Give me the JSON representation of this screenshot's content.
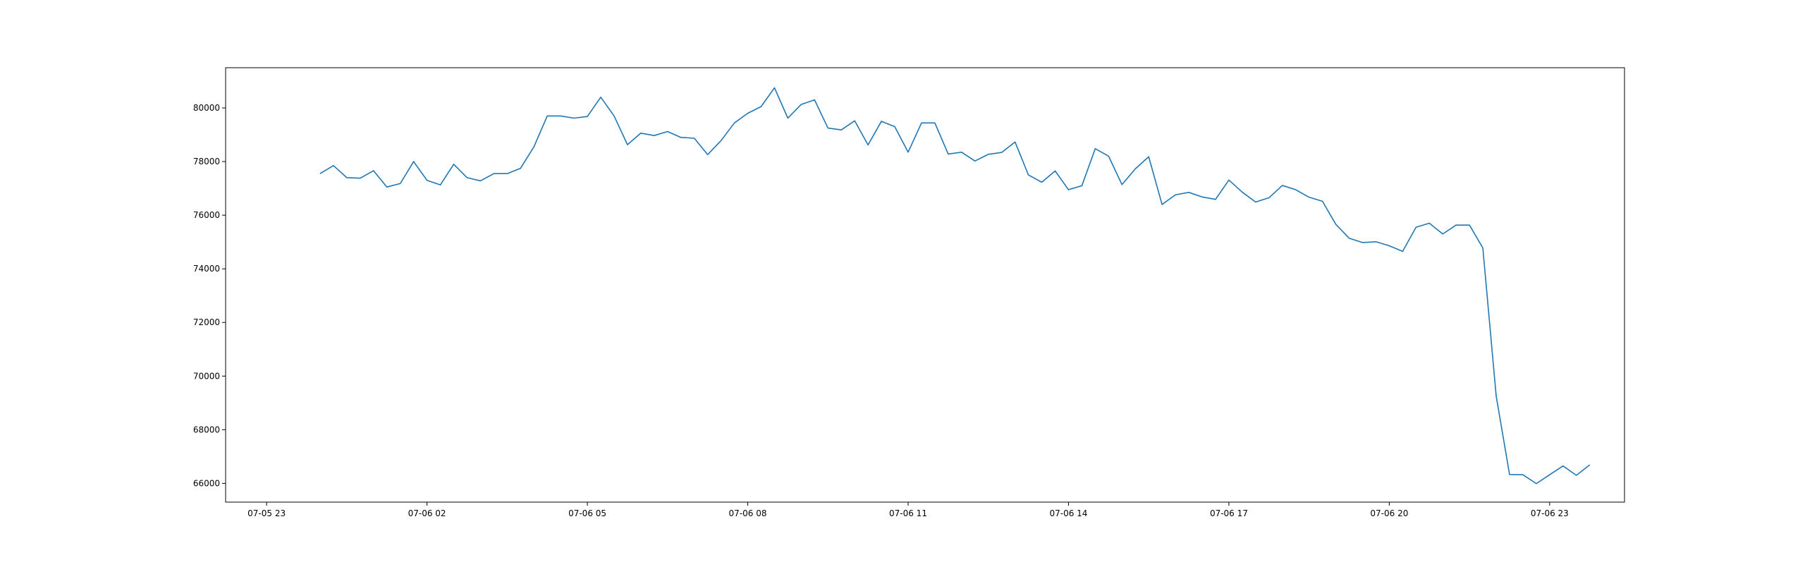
{
  "chart_data": {
    "type": "line",
    "title": "",
    "xlabel": "",
    "ylabel": "",
    "grid": false,
    "legend": "none",
    "x_tick_labels": [
      "07-05 23",
      "07-06 02",
      "07-06 05",
      "07-06 08",
      "07-06 11",
      "07-06 14",
      "07-06 17",
      "07-06 20",
      "07-06 23"
    ],
    "y_ticks": [
      66000,
      68000,
      70000,
      72000,
      74000,
      76000,
      78000,
      80000
    ],
    "y_tick_labels": [
      "66000",
      "68000",
      "70000",
      "72000",
      "74000",
      "76000",
      "78000",
      "80000"
    ],
    "ylim": [
      65300,
      81500
    ],
    "x_range": [
      "07-05 22:14",
      "07-07 00:24"
    ],
    "x_start": "07-06 00:00",
    "x_interval_minutes": 15,
    "series": [
      {
        "color": "#1f77b4",
        "values": [
          77550,
          77850,
          77400,
          77380,
          77660,
          77050,
          77180,
          78000,
          77300,
          77130,
          77900,
          77400,
          77280,
          77550,
          77550,
          77750,
          78550,
          79700,
          79700,
          79620,
          79680,
          80400,
          79700,
          78630,
          79060,
          78970,
          79120,
          78900,
          78870,
          78260,
          78780,
          79440,
          79800,
          80050,
          80750,
          79620,
          80130,
          80300,
          79250,
          79180,
          79520,
          78620,
          79500,
          79300,
          78350,
          79440,
          79440,
          78280,
          78350,
          78020,
          78270,
          78340,
          78730,
          77500,
          77230,
          77650,
          76950,
          77100,
          78480,
          78200,
          77140,
          77730,
          78180,
          76400,
          76760,
          76850,
          76680,
          76590,
          77310,
          76860,
          76490,
          76650,
          77110,
          76950,
          76670,
          76520,
          75660,
          75140,
          74980,
          75010,
          74860,
          74650,
          75550,
          75700,
          75300,
          75630,
          75630,
          74780,
          69250,
          66330,
          66320,
          65990,
          66320,
          66650,
          66300,
          66690
        ]
      }
    ]
  }
}
